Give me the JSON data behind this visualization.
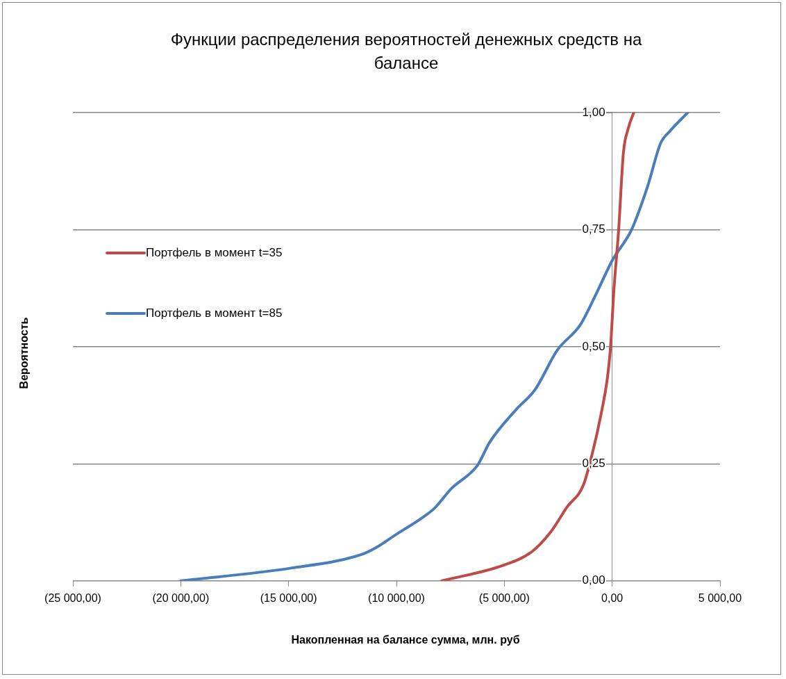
{
  "chart_data": {
    "type": "line",
    "title": "Функции распределения вероятностей денежных средств на балансе",
    "xlabel": "Накопленная на балансе сумма, млн. руб",
    "ylabel": "Вероятность",
    "xlim": [
      -25000,
      5000
    ],
    "xticks": [
      {
        "value": -25000,
        "label": "(25 000,00)"
      },
      {
        "value": -20000,
        "label": "(20 000,00)"
      },
      {
        "value": -15000,
        "label": "(15 000,00)"
      },
      {
        "value": -10000,
        "label": "(10 000,00)"
      },
      {
        "value": -5000,
        "label": "(5 000,00)"
      },
      {
        "value": 0,
        "label": "0,00"
      },
      {
        "value": 5000,
        "label": "5 000,00"
      }
    ],
    "ylim": [
      0,
      1
    ],
    "yticks": [
      {
        "value": 0,
        "label": "0,00"
      },
      {
        "value": 0.25,
        "label": "0,25"
      },
      {
        "value": 0.5,
        "label": "0,50"
      },
      {
        "value": 0.75,
        "label": "0,75"
      },
      {
        "value": 1,
        "label": "1,00"
      }
    ],
    "grid": "y",
    "legend": "left",
    "marker": "none",
    "line_style": "solid",
    "series": [
      {
        "name": "Портфель в момент t=35",
        "color": "#be4b48",
        "x": [
          -7900,
          -5070,
          -3730,
          -2840,
          -2090,
          -1340,
          -900,
          -520,
          -220,
          -75,
          75,
          300,
          520,
          750,
          1000
        ],
        "values": [
          0,
          0.033,
          0.062,
          0.105,
          0.158,
          0.204,
          0.276,
          0.355,
          0.434,
          0.5,
          0.618,
          0.75,
          0.914,
          0.967,
          1
        ]
      },
      {
        "name": "Портфель в момент t=85",
        "color": "#4a7ebb",
        "x": [
          -20000,
          -14930,
          -11580,
          -10910,
          -10020,
          -8800,
          -8240,
          -7460,
          -6240,
          -5680,
          -4450,
          -3580,
          -2540,
          -1490,
          -750,
          0,
          900,
          1640,
          2240,
          2690,
          3500
        ],
        "values": [
          0,
          0.027,
          0.057,
          0.072,
          0.099,
          0.135,
          0.155,
          0.197,
          0.247,
          0.296,
          0.366,
          0.408,
          0.493,
          0.546,
          0.612,
          0.684,
          0.75,
          0.842,
          0.934,
          0.961,
          1
        ]
      }
    ]
  }
}
